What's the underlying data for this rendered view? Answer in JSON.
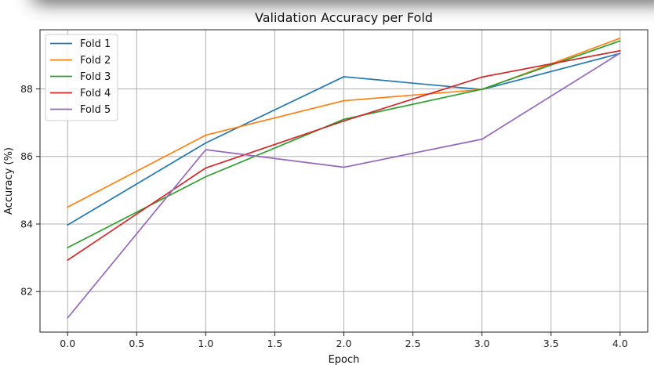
{
  "chart_data": {
    "type": "line",
    "title": "Validation Accuracy per Fold",
    "xlabel": "Epoch",
    "ylabel": "Accuracy (%)",
    "x": [
      0,
      1,
      2,
      3,
      4
    ],
    "xlim": [
      -0.2,
      4.2
    ],
    "ylim": [
      80.8,
      89.75
    ],
    "xticks": [
      0.0,
      0.5,
      1.0,
      1.5,
      2.0,
      2.5,
      3.0,
      3.5,
      4.0
    ],
    "xtick_labels": [
      "0.0",
      "0.5",
      "1.0",
      "1.5",
      "2.0",
      "2.5",
      "3.0",
      "3.5",
      "4.0"
    ],
    "yticks": [
      82,
      84,
      86,
      88
    ],
    "ytick_labels": [
      "82",
      "84",
      "86",
      "88"
    ],
    "grid": true,
    "legend_position": "top-left",
    "series": [
      {
        "name": "Fold 1",
        "color": "#1f77b4",
        "values": [
          83.97,
          86.4,
          88.36,
          87.98,
          89.05
        ]
      },
      {
        "name": "Fold 2",
        "color": "#ff7f0e",
        "values": [
          84.5,
          86.63,
          87.65,
          87.98,
          89.5
        ]
      },
      {
        "name": "Fold 3",
        "color": "#2ca02c",
        "values": [
          83.3,
          85.4,
          87.1,
          87.99,
          89.42
        ]
      },
      {
        "name": "Fold 4",
        "color": "#d62728",
        "values": [
          82.93,
          85.66,
          87.05,
          88.35,
          89.13
        ]
      },
      {
        "name": "Fold 5",
        "color": "#9467bd",
        "values": [
          81.22,
          86.2,
          85.68,
          86.51,
          89.06
        ]
      }
    ]
  }
}
